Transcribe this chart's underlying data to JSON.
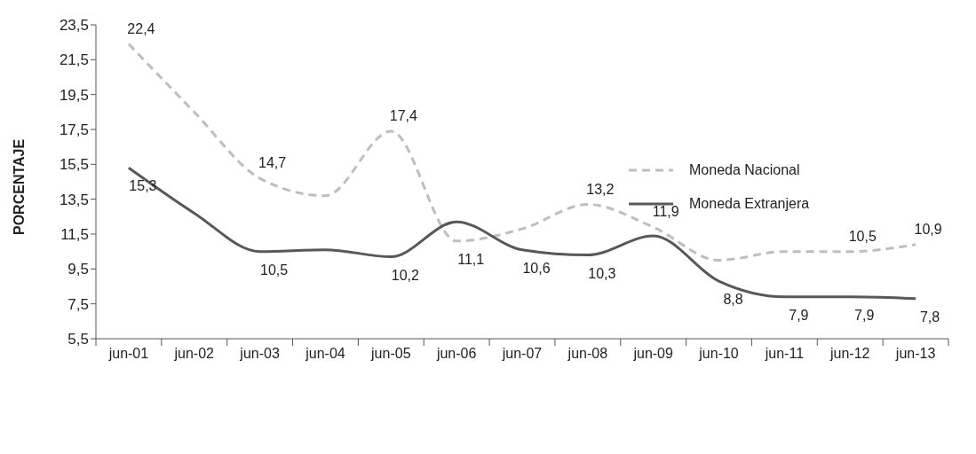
{
  "chart_data": {
    "type": "line",
    "ylabel": "PORCENTAJE",
    "categories": [
      "jun-01",
      "jun-02",
      "jun-03",
      "jun-04",
      "jun-05",
      "jun-06",
      "jun-07",
      "jun-08",
      "jun-09",
      "jun-10",
      "jun-11",
      "jun-12",
      "jun-13"
    ],
    "series": [
      {
        "name": "Moneda Nacional",
        "color": "#bdbec0",
        "line_style": "dashed",
        "values": [
          22.4,
          18.5,
          14.7,
          13.7,
          17.4,
          11.1,
          11.8,
          13.2,
          11.9,
          10.0,
          10.5,
          10.5,
          10.9
        ],
        "value_labels": [
          "22,4",
          null,
          "14,7",
          null,
          "17,4",
          "11,1",
          null,
          "13,2",
          "11,9",
          null,
          null,
          "10,5",
          "10,9"
        ]
      },
      {
        "name": "Moneda Extranjera",
        "color": "#58585a",
        "line_style": "solid",
        "values": [
          15.3,
          12.7,
          10.5,
          10.6,
          10.2,
          12.2,
          10.6,
          10.3,
          11.4,
          8.8,
          7.9,
          7.9,
          7.8
        ],
        "value_labels": [
          "15,3",
          null,
          "10,5",
          null,
          "10,2",
          null,
          "10,6",
          "10,3",
          null,
          "8,8",
          "7,9",
          "7,9",
          "7,8"
        ]
      }
    ],
    "ylim": [
      5.5,
      23.5
    ],
    "yticks": [
      {
        "value": 5.5,
        "label": "5,5"
      },
      {
        "value": 7.5,
        "label": "7,5"
      },
      {
        "value": 9.5,
        "label": "9,5"
      },
      {
        "value": 11.5,
        "label": "11,5"
      },
      {
        "value": 13.5,
        "label": "13,5"
      },
      {
        "value": 15.5,
        "label": "15,5"
      },
      {
        "value": 17.5,
        "label": "17,5"
      },
      {
        "value": 19.5,
        "label": "19,5"
      },
      {
        "value": 21.5,
        "label": "21,5"
      },
      {
        "value": 23.5,
        "label": "23,5"
      }
    ],
    "grid": false,
    "legend": "right",
    "marker": "none"
  }
}
